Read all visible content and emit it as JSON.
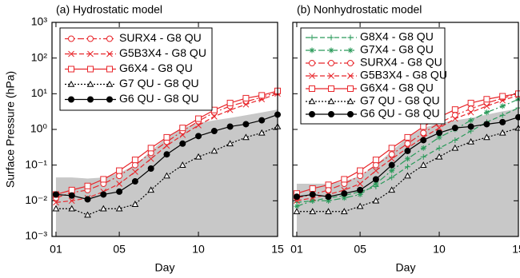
{
  "chart_data": [
    {
      "type": "line",
      "title": "(a) Hydrostatic model",
      "xlabel": "Day",
      "ylabel": "Surface Pressure (hPa)",
      "log_y": true,
      "x": [
        1,
        2,
        3,
        4,
        5,
        6,
        7,
        8,
        9,
        10,
        11,
        12,
        13,
        14,
        15
      ],
      "xlim": [
        0.75,
        15
      ],
      "xticks": [
        {
          "value": 1,
          "label": "01"
        },
        {
          "value": 5,
          "label": "05"
        },
        10,
        15
      ],
      "ylim": [
        0.001,
        1000
      ],
      "yticks": [
        {
          "value": 0.001,
          "label": "10⁻³"
        },
        {
          "value": 0.01,
          "label": "10⁻²"
        },
        {
          "value": 0.1,
          "label": "10⁻¹"
        },
        {
          "value": 1,
          "label": "10⁰"
        },
        {
          "value": 10,
          "label": "10¹"
        },
        {
          "value": 100,
          "label": "10²"
        },
        {
          "value": 1000,
          "label": "10³"
        }
      ],
      "legend": "upper left",
      "band": {
        "color": "#c8c8c8",
        "values": [
          0.045,
          0.045,
          0.042,
          0.045,
          0.06,
          0.1,
          0.25,
          0.6,
          1.1,
          1.5,
          1.8,
          2.1,
          2.5,
          3,
          3.6
        ]
      },
      "series": [
        {
          "name": "SURX4 - G8 QU",
          "color": "#e8262b",
          "dash": "dashdot",
          "marker": "circle",
          "values": [
            0.012,
            0.017,
            0.02,
            0.03,
            0.05,
            0.1,
            0.22,
            0.45,
            0.9,
            1.7,
            3,
            4.5,
            6,
            8,
            11
          ]
        },
        {
          "name": "G5B3X4 - G8 QU",
          "color": "#e8262b",
          "dash": "dash",
          "marker": "x",
          "values": [
            0.009,
            0.01,
            0.012,
            0.018,
            0.03,
            0.065,
            0.15,
            0.35,
            0.7,
            1.3,
            2.3,
            3.5,
            5,
            7,
            10
          ]
        },
        {
          "name": "G6X4 - G8 QU",
          "color": "#e8262b",
          "dash": "solid",
          "marker": "square",
          "values": [
            0.015,
            0.02,
            0.026,
            0.04,
            0.07,
            0.14,
            0.3,
            0.6,
            1.1,
            2,
            3.5,
            5.5,
            7.5,
            9,
            12
          ]
        },
        {
          "name": "G7 QU - G8 QU",
          "color": "#000000",
          "dash": "dot",
          "marker": "triangle",
          "values": [
            0.006,
            0.006,
            0.004,
            0.006,
            0.006,
            0.008,
            0.02,
            0.05,
            0.1,
            0.17,
            0.25,
            0.4,
            0.6,
            0.8,
            1.2
          ]
        },
        {
          "name": "G6 QU - G8 QU",
          "color": "#000000",
          "dash": "solid",
          "marker": "dot",
          "values": [
            0.015,
            0.014,
            0.011,
            0.015,
            0.018,
            0.035,
            0.08,
            0.2,
            0.4,
            0.65,
            0.9,
            1.2,
            1.4,
            1.8,
            2.6
          ]
        }
      ]
    },
    {
      "type": "line",
      "title": "(b) Nonhydrostatic model",
      "xlabel": "Day",
      "log_y": true,
      "x": [
        1,
        2,
        3,
        4,
        5,
        6,
        7,
        8,
        9,
        10,
        11,
        12,
        13,
        14,
        15
      ],
      "xlim": [
        0.75,
        15
      ],
      "xticks": [
        {
          "value": 1,
          "label": "01"
        },
        {
          "value": 5,
          "label": "05"
        },
        10,
        15
      ],
      "ylim": [
        0.001,
        1000
      ],
      "yticks": [
        {
          "value": 0.001,
          "label": "10⁻³"
        },
        {
          "value": 0.01,
          "label": "10⁻²"
        },
        {
          "value": 0.1,
          "label": "10⁻¹"
        },
        {
          "value": 1,
          "label": "10⁰"
        },
        {
          "value": 10,
          "label": "10¹"
        },
        {
          "value": 100,
          "label": "10²"
        },
        {
          "value": 1000,
          "label": "10³"
        }
      ],
      "legend": "upper left",
      "band": {
        "color": "#c8c8c8",
        "values": [
          0.03,
          0.03,
          0.03,
          0.035,
          0.05,
          0.1,
          0.25,
          0.6,
          1.1,
          1.5,
          1.8,
          2.1,
          2.6,
          3.2,
          3.8
        ]
      },
      "series": [
        {
          "name": "G8X4 - G8 QU",
          "color": "#2a9a5a",
          "dash": "dash",
          "marker": "plus",
          "values": [
            0.009,
            0.01,
            0.012,
            0.014,
            0.018,
            0.025,
            0.045,
            0.09,
            0.17,
            0.3,
            0.5,
            0.9,
            1.6,
            2.5,
            4
          ]
        },
        {
          "name": "G7X4 - G8 QU",
          "color": "#2a9a5a",
          "dash": "dashdot",
          "marker": "star",
          "values": [
            0.007,
            0.01,
            0.01,
            0.012,
            0.015,
            0.03,
            0.07,
            0.15,
            0.3,
            0.6,
            1,
            1.8,
            3,
            4.5,
            7
          ]
        },
        {
          "name": "SURX4 - G8 QU",
          "color": "#e8262b",
          "dash": "dashdot",
          "marker": "circle",
          "values": [
            0.012,
            0.015,
            0.02,
            0.03,
            0.05,
            0.1,
            0.2,
            0.4,
            0.8,
            1.5,
            2.5,
            3.8,
            5.5,
            7.5,
            10
          ]
        },
        {
          "name": "G5B3X4 - G8 QU",
          "color": "#e8262b",
          "dash": "dash",
          "marker": "x",
          "values": [
            0.01,
            0.012,
            0.015,
            0.02,
            0.03,
            0.07,
            0.15,
            0.3,
            0.6,
            1.1,
            2,
            3,
            4.5,
            6.5,
            9
          ]
        },
        {
          "name": "G6X4 - G8 QU",
          "color": "#e8262b",
          "dash": "solid",
          "marker": "square",
          "values": [
            0.016,
            0.022,
            0.028,
            0.04,
            0.07,
            0.14,
            0.3,
            0.6,
            1.2,
            2.2,
            3.6,
            5.5,
            7,
            8.5,
            10
          ]
        },
        {
          "name": "G7 QU - G8 QU",
          "color": "#000000",
          "dash": "dot",
          "marker": "triangle",
          "values": [
            0.005,
            0.005,
            0.005,
            0.005,
            0.007,
            0.01,
            0.02,
            0.05,
            0.1,
            0.17,
            0.3,
            0.45,
            0.6,
            0.8,
            1.1
          ]
        },
        {
          "name": "G6 QU - G8 QU",
          "color": "#000000",
          "dash": "solid",
          "marker": "dot",
          "values": [
            0.013,
            0.015,
            0.013,
            0.016,
            0.02,
            0.04,
            0.1,
            0.25,
            0.5,
            0.8,
            1.1,
            1.2,
            1.4,
            1.6,
            2.2
          ]
        }
      ]
    }
  ]
}
